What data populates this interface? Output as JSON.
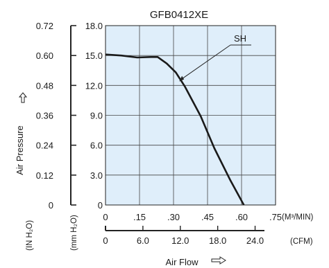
{
  "chart_data": {
    "type": "line",
    "title": "GFB0412XE",
    "xlabel": "Air Flow",
    "ylabel": "Air Pressure",
    "x_unit_m3min": "(M³/MIN)",
    "x_unit_cfm": "(CFM)",
    "y_unit_inh2o": "(IN H₂O)",
    "y_unit_mmh2o": "(mm H₂O)",
    "xlim": [
      0,
      0.75
    ],
    "ylim": [
      0,
      18
    ],
    "grid": true,
    "x_ticks": [
      "0",
      ".15",
      ".30",
      ".45",
      ".60",
      ".75"
    ],
    "cfm_ticks": [
      "0",
      "6.0",
      "12.0",
      "18.0",
      "24.0"
    ],
    "mmh2o_ticks": [
      "0",
      "3.0",
      "6.0",
      "9.0",
      "12.0",
      "15.0",
      "18.0"
    ],
    "inh2o_ticks": [
      "0",
      "0.12",
      "0.24",
      "0.36",
      "0.48",
      "0.60",
      "0.72"
    ],
    "series": [
      {
        "name": "SH",
        "x": [
          0,
          0.07,
          0.14,
          0.2,
          0.23,
          0.27,
          0.31,
          0.35,
          0.42,
          0.48,
          0.55,
          0.61
        ],
        "y": [
          15.1,
          15.0,
          14.8,
          14.85,
          14.85,
          14.2,
          13.3,
          11.9,
          8.9,
          5.7,
          2.5,
          0
        ]
      }
    ],
    "plot_background": "#dfeefa",
    "line_color": "#1a1a1a"
  }
}
